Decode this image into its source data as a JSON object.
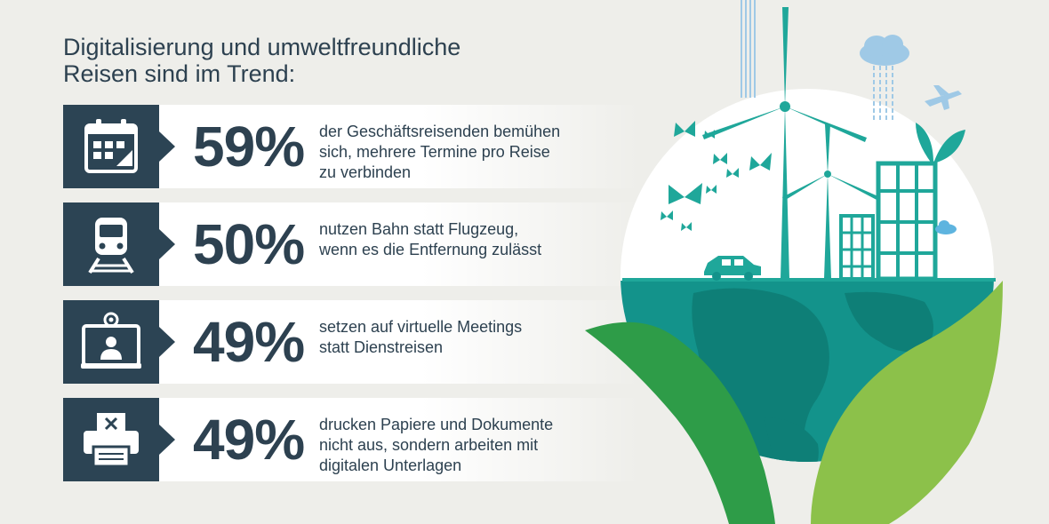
{
  "title": {
    "line1": "Digitalisierung und umweltfreundliche",
    "line2": "Reisen sind im Trend:"
  },
  "stats": [
    {
      "icon": "calendar-icon",
      "percent": "59%",
      "lines": [
        "der Geschäftsreisenden bemühen",
        "sich, mehrere Termine pro Reise",
        "zu verbinden"
      ]
    },
    {
      "icon": "train-icon",
      "percent": "50%",
      "lines": [
        "nutzen Bahn statt Flugzeug,",
        "wenn es die Entfernung zulässt"
      ]
    },
    {
      "icon": "video-meeting-icon",
      "percent": "49%",
      "lines": [
        "setzen auf virtuelle Meetings",
        "statt Dienstreisen"
      ]
    },
    {
      "icon": "printer-crossed-icon",
      "percent": "49%",
      "lines": [
        "drucken Papiere und Dokumente",
        "nicht aus, sondern arbeiten mit",
        "digitalen Unterlagen"
      ]
    }
  ],
  "colors": {
    "background": "#eeeeea",
    "dark_blue": "#2c4454",
    "teal": "#1fa79a",
    "ocean": "#13938b",
    "leaf_light": "#8cc14a",
    "leaf_dark": "#2e9c48"
  }
}
